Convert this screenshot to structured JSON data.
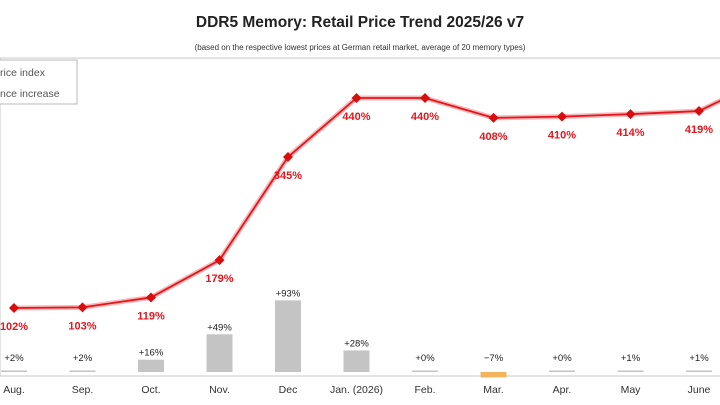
{
  "chart_data": {
    "type": "bar+line",
    "title": "DDR5 Memory: Retail Price Trend 2025/26 v7",
    "subtitle": "(based on the respective lowest prices at German retail market, average of 20 memory types)",
    "legend": [
      "rice index",
      "nce increase"
    ],
    "legend_position": "top-left",
    "categories": [
      "Aug.",
      "Sep.",
      "Oct.",
      "Nov.",
      "Dec",
      "Jan. (2026)",
      "Feb.",
      "Mar.",
      "Apr.",
      "May",
      "June"
    ],
    "price_index": [
      102,
      103,
      119,
      179,
      345,
      440,
      440,
      408,
      410,
      414,
      419
    ],
    "price_index_labels": [
      "102%",
      "103%",
      "119%",
      "179%",
      "345%",
      "440%",
      "440%",
      "408%",
      "410%",
      "414%",
      "419%"
    ],
    "price_increase": [
      2,
      2,
      16,
      49,
      93,
      28,
      0,
      -7,
      0,
      1,
      1
    ],
    "price_increase_labels": [
      "+2%",
      "+2%",
      "+16%",
      "+49%",
      "+93%",
      "+28%",
      "+0%",
      "−7%",
      "+0%",
      "+1%",
      "+1%"
    ],
    "grid": false,
    "colors": {
      "line": "#e8141c",
      "line_glow": "#f6b8b8",
      "marker": "#d90d0d",
      "bar": "#c4c4c4",
      "bar_negative": "#f3b45c",
      "label_line": "#e8141c",
      "label_bar": "#222222"
    }
  }
}
